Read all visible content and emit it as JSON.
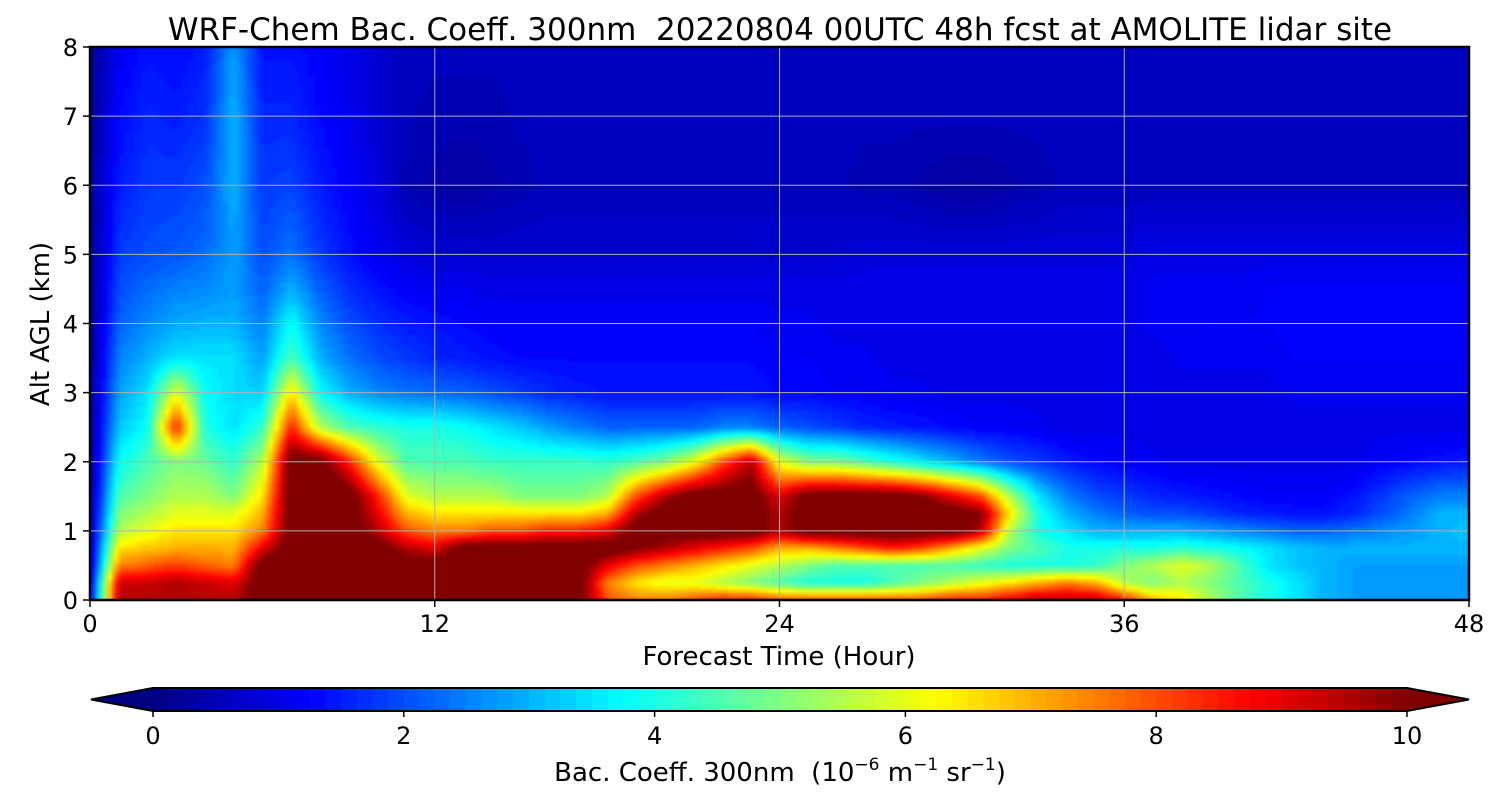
{
  "chart_data": {
    "type": "heatmap",
    "title": "WRF-Chem Bac. Coeff. 300nm  20220804 00UTC 48h fcst at AMOLITE lidar site",
    "xlabel": "Forecast Time (Hour)",
    "ylabel": "Alt AGL (km)",
    "x_range": [
      0,
      48
    ],
    "y_range": [
      0,
      8
    ],
    "x_ticks": [
      0,
      12,
      24,
      36,
      48
    ],
    "y_ticks": [
      0,
      1,
      2,
      3,
      4,
      5,
      6,
      7,
      8
    ],
    "grid": true,
    "colormap": "jet",
    "colorbar": {
      "label_prefix": "Bac. Coeff. 300nm  (10",
      "label_exp1": "−6",
      "label_mid": " m",
      "label_exp2": "−1",
      "label_mid2": " sr",
      "label_exp3": "−1",
      "label_suffix": ")",
      "range": [
        0,
        10
      ],
      "ticks": [
        0,
        2,
        4,
        6,
        8,
        10
      ],
      "extend": "both",
      "orientation": "horizontal",
      "placement": "bottom"
    },
    "x": [
      0,
      1,
      2,
      3,
      4,
      5,
      6,
      7,
      8,
      9,
      10,
      11,
      12,
      13,
      14,
      15,
      16,
      17,
      18,
      19,
      20,
      21,
      22,
      23,
      24,
      25,
      26,
      27,
      28,
      29,
      30,
      31,
      32,
      33,
      34,
      35,
      36,
      37,
      38,
      39,
      40,
      41,
      42,
      43,
      44,
      45,
      46,
      47,
      48
    ],
    "y": [
      0,
      0.25,
      0.5,
      0.75,
      1,
      1.25,
      1.5,
      2,
      2.5,
      3,
      3.5,
      4,
      4.5,
      5,
      6,
      7,
      8
    ],
    "z": [
      [
        1.0,
        9.5,
        9.5,
        9.5,
        9.5,
        9.5,
        10.5,
        10.5,
        10.5,
        10.5,
        10.5,
        10.5,
        10.5,
        10.5,
        10.5,
        10.5,
        10.5,
        10.5,
        8.0,
        7.5,
        7.5,
        8.0,
        8.5,
        8.5,
        8.0,
        8.0,
        8.0,
        8.0,
        8.0,
        8.0,
        8.5,
        8.5,
        9.0,
        9.5,
        9.5,
        9.5,
        8.5,
        7.0,
        6.5,
        5.5,
        4.5,
        4.0,
        3.5,
        3.0,
        2.8,
        2.8,
        2.8,
        2.8,
        2.8
      ],
      [
        0.8,
        9.2,
        9.3,
        9.5,
        9.3,
        9.0,
        10.5,
        10.5,
        10.5,
        10.5,
        10.5,
        10.5,
        10.5,
        10.5,
        10.5,
        10.5,
        10.5,
        10.5,
        7.5,
        6.5,
        6.0,
        6.0,
        5.5,
        5.0,
        4.5,
        4.0,
        4.0,
        4.0,
        4.5,
        5.0,
        5.5,
        6.0,
        6.5,
        7.0,
        7.5,
        7.0,
        5.5,
        5.0,
        5.5,
        5.0,
        4.5,
        4.0,
        3.5,
        3.0,
        2.8,
        2.8,
        2.8,
        2.8,
        2.8
      ],
      [
        0.6,
        7.5,
        7.8,
        8.2,
        7.8,
        7.5,
        10.5,
        10.5,
        10.5,
        10.5,
        10.5,
        10.5,
        10.5,
        10.5,
        10.5,
        10.5,
        10.5,
        10.5,
        9.0,
        8.0,
        7.5,
        7.0,
        6.5,
        6.0,
        5.5,
        5.0,
        4.5,
        4.5,
        4.5,
        4.5,
        4.5,
        4.3,
        4.0,
        4.0,
        4.0,
        4.2,
        5.0,
        5.5,
        6.0,
        5.5,
        4.5,
        3.5,
        3.2,
        3.0,
        2.8,
        2.8,
        2.8,
        2.8,
        2.8
      ],
      [
        0.5,
        6.5,
        6.8,
        7.0,
        7.0,
        7.0,
        9.0,
        10.5,
        10.5,
        10.5,
        10.5,
        9.5,
        9.0,
        10.5,
        10.5,
        10.5,
        10.5,
        10.5,
        10.5,
        10.0,
        9.5,
        9.0,
        8.5,
        8.0,
        7.0,
        7.0,
        7.5,
        8.0,
        8.5,
        8.0,
        7.0,
        6.0,
        5.0,
        4.5,
        4.0,
        4.0,
        4.0,
        4.0,
        4.2,
        4.0,
        3.8,
        3.5,
        3.2,
        3.0,
        3.0,
        3.0,
        3.0,
        3.0,
        3.0
      ],
      [
        0.4,
        5.5,
        6.0,
        6.5,
        6.5,
        6.5,
        7.5,
        10.5,
        10.5,
        10.5,
        9.5,
        8.0,
        7.5,
        7.5,
        8.0,
        8.0,
        8.5,
        8.5,
        9.0,
        10.5,
        10.5,
        10.5,
        10.5,
        10.5,
        9.5,
        10.5,
        10.5,
        10.5,
        10.5,
        10.5,
        10.5,
        9.5,
        5.5,
        4.0,
        3.5,
        3.0,
        3.0,
        3.0,
        3.0,
        2.8,
        2.6,
        2.4,
        2.2,
        2.2,
        2.4,
        2.6,
        2.8,
        3.0,
        3.2
      ],
      [
        0.3,
        5.0,
        5.5,
        6.0,
        6.0,
        6.0,
        7.0,
        10.5,
        10.5,
        10.5,
        9.0,
        7.0,
        6.5,
        6.5,
        6.5,
        6.5,
        6.5,
        6.5,
        7.0,
        9.5,
        10.5,
        10.5,
        10.5,
        10.5,
        9.5,
        10.5,
        10.5,
        10.5,
        10.5,
        10.5,
        10.5,
        10.0,
        6.5,
        4.0,
        3.0,
        2.5,
        2.2,
        2.0,
        2.0,
        1.8,
        1.6,
        1.5,
        1.4,
        1.4,
        1.6,
        2.0,
        2.5,
        3.0,
        3.0
      ],
      [
        0.3,
        4.5,
        5.0,
        5.5,
        5.5,
        5.0,
        6.5,
        10.5,
        10.5,
        10.5,
        8.5,
        6.0,
        5.5,
        5.5,
        5.5,
        5.0,
        5.0,
        5.0,
        5.5,
        8.0,
        9.5,
        10.5,
        10.5,
        10.5,
        9.0,
        10.5,
        10.5,
        10.5,
        10.5,
        10.0,
        9.0,
        8.0,
        5.5,
        3.5,
        2.5,
        2.0,
        1.8,
        1.6,
        1.5,
        1.4,
        1.3,
        1.2,
        1.2,
        1.2,
        1.4,
        1.8,
        2.2,
        2.5,
        2.5
      ],
      [
        0.2,
        3.8,
        4.5,
        5.0,
        4.8,
        4.2,
        5.5,
        10.5,
        10.5,
        8.5,
        6.0,
        4.5,
        4.5,
        4.5,
        4.3,
        4.3,
        4.3,
        4.3,
        4.2,
        4.5,
        5.0,
        6.0,
        8.0,
        9.5,
        6.0,
        5.0,
        5.0,
        4.5,
        4.0,
        3.5,
        3.0,
        2.5,
        2.0,
        1.8,
        1.5,
        1.3,
        1.2,
        1.1,
        1.0,
        1.0,
        1.0,
        1.0,
        1.0,
        1.0,
        1.0,
        1.2,
        1.3,
        1.4,
        1.5
      ],
      [
        0.2,
        3.2,
        3.8,
        8.5,
        4.0,
        3.5,
        4.2,
        8.5,
        5.5,
        4.5,
        4.2,
        4.0,
        4.0,
        3.8,
        3.5,
        3.2,
        2.8,
        2.5,
        2.2,
        2.2,
        2.2,
        2.2,
        2.5,
        2.5,
        2.2,
        2.0,
        1.8,
        1.6,
        1.5,
        1.4,
        1.3,
        1.2,
        1.2,
        1.1,
        1.0,
        1.0,
        1.0,
        1.0,
        1.0,
        1.0,
        1.0,
        1.0,
        1.0,
        1.0,
        1.0,
        1.0,
        1.0,
        1.0,
        1.0
      ],
      [
        0.2,
        2.8,
        3.5,
        6.0,
        3.8,
        3.4,
        3.3,
        6.5,
        3.8,
        3.0,
        2.6,
        2.4,
        2.3,
        2.2,
        2.0,
        1.8,
        1.6,
        1.5,
        1.4,
        1.4,
        1.4,
        1.4,
        1.4,
        1.4,
        1.3,
        1.3,
        1.2,
        1.2,
        1.1,
        1.1,
        1.0,
        1.0,
        1.0,
        1.0,
        1.0,
        1.0,
        1.0,
        1.0,
        1.0,
        1.0,
        1.0,
        1.0,
        1.1,
        1.1,
        1.1,
        1.1,
        1.1,
        1.1,
        1.1
      ],
      [
        0.2,
        2.5,
        3.0,
        3.5,
        3.5,
        3.5,
        2.8,
        4.5,
        3.0,
        2.4,
        2.0,
        1.8,
        1.6,
        1.5,
        1.4,
        1.3,
        1.3,
        1.3,
        1.3,
        1.3,
        1.3,
        1.3,
        1.3,
        1.3,
        1.2,
        1.2,
        1.1,
        1.1,
        1.0,
        1.0,
        1.0,
        1.0,
        1.0,
        1.0,
        1.0,
        1.0,
        1.0,
        1.0,
        1.1,
        1.1,
        1.1,
        1.1,
        1.2,
        1.2,
        1.2,
        1.2,
        1.2,
        1.2,
        1.2
      ],
      [
        0.2,
        2.2,
        2.6,
        2.9,
        3.0,
        3.0,
        2.5,
        3.8,
        2.6,
        2.0,
        1.7,
        1.5,
        1.4,
        1.3,
        1.2,
        1.2,
        1.2,
        1.2,
        1.2,
        1.2,
        1.2,
        1.2,
        1.2,
        1.2,
        1.1,
        1.1,
        1.0,
        1.0,
        1.0,
        1.0,
        1.0,
        1.0,
        1.0,
        1.0,
        1.0,
        1.0,
        1.0,
        1.1,
        1.1,
        1.2,
        1.2,
        1.2,
        1.3,
        1.3,
        1.3,
        1.3,
        1.3,
        1.3,
        1.3
      ],
      [
        0.2,
        2.0,
        2.3,
        2.5,
        2.6,
        2.8,
        2.2,
        3.0,
        2.2,
        1.7,
        1.4,
        1.2,
        1.1,
        1.1,
        1.0,
        1.0,
        1.0,
        1.0,
        1.0,
        1.0,
        1.0,
        1.0,
        1.0,
        1.0,
        1.0,
        1.0,
        1.0,
        1.0,
        1.0,
        1.0,
        1.0,
        1.0,
        1.0,
        1.0,
        1.0,
        1.0,
        1.0,
        1.1,
        1.1,
        1.1,
        1.1,
        1.2,
        1.2,
        1.2,
        1.2,
        1.2,
        1.2,
        1.2,
        1.2
      ],
      [
        0.2,
        1.8,
        2.0,
        2.1,
        2.3,
        2.8,
        2.0,
        2.4,
        1.8,
        1.4,
        1.1,
        0.9,
        0.8,
        0.8,
        0.8,
        0.8,
        0.8,
        0.8,
        0.8,
        0.8,
        0.8,
        0.8,
        0.8,
        0.8,
        0.8,
        0.8,
        0.8,
        0.9,
        0.9,
        0.9,
        0.9,
        0.9,
        0.9,
        0.9,
        0.9,
        0.9,
        0.9,
        1.0,
        1.0,
        1.0,
        1.0,
        1.0,
        1.0,
        1.0,
        1.0,
        1.0,
        1.0,
        1.0,
        1.0
      ],
      [
        0.2,
        1.5,
        1.8,
        1.8,
        2.0,
        3.0,
        1.8,
        1.9,
        1.5,
        1.2,
        0.9,
        0.5,
        0.4,
        0.3,
        0.4,
        0.5,
        0.6,
        0.6,
        0.6,
        0.6,
        0.6,
        0.6,
        0.6,
        0.6,
        0.6,
        0.6,
        0.6,
        0.5,
        0.5,
        0.4,
        0.3,
        0.3,
        0.4,
        0.5,
        0.6,
        0.6,
        0.6,
        0.6,
        0.6,
        0.6,
        0.6,
        0.6,
        0.6,
        0.6,
        0.6,
        0.6,
        0.6,
        0.6,
        0.6
      ],
      [
        0.2,
        1.3,
        1.6,
        1.5,
        1.7,
        3.0,
        1.6,
        1.6,
        1.3,
        1.1,
        0.8,
        0.6,
        0.5,
        0.5,
        0.5,
        0.6,
        0.6,
        0.6,
        0.6,
        0.6,
        0.6,
        0.6,
        0.6,
        0.6,
        0.6,
        0.6,
        0.6,
        0.6,
        0.6,
        0.6,
        0.6,
        0.6,
        0.6,
        0.6,
        0.6,
        0.6,
        0.6,
        0.6,
        0.6,
        0.6,
        0.6,
        0.6,
        0.6,
        0.6,
        0.6,
        0.6,
        0.6,
        0.6,
        0.6
      ],
      [
        0.2,
        1.1,
        1.4,
        1.3,
        1.5,
        2.8,
        1.4,
        1.4,
        1.2,
        1.0,
        0.8,
        0.6,
        0.6,
        0.6,
        0.6,
        0.6,
        0.6,
        0.6,
        0.6,
        0.6,
        0.6,
        0.6,
        0.6,
        0.6,
        0.6,
        0.6,
        0.6,
        0.6,
        0.6,
        0.6,
        0.6,
        0.6,
        0.6,
        0.6,
        0.6,
        0.6,
        0.6,
        0.6,
        0.6,
        0.6,
        0.6,
        0.6,
        0.6,
        0.6,
        0.6,
        0.6,
        0.6,
        0.6,
        0.6
      ]
    ]
  }
}
